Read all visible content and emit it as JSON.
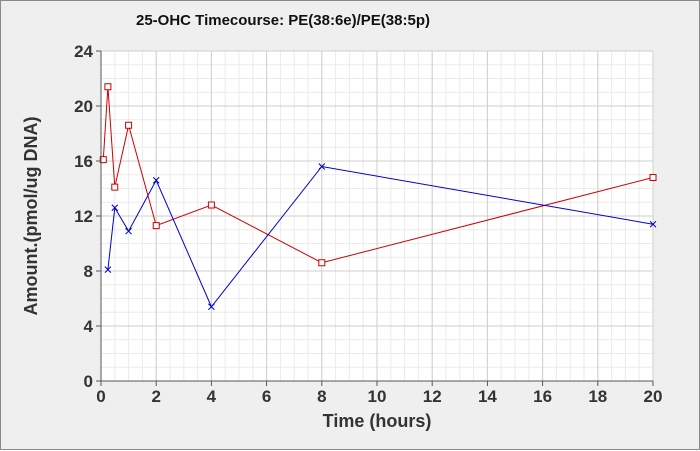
{
  "chart_data": {
    "type": "line",
    "title": "25-OHC Timecourse: PE(38:6e)/PE(38:5p)",
    "xlabel": "Time (hours)",
    "ylabel": "Amount.(pmol/ug DNA)",
    "xlim": [
      0,
      20
    ],
    "ylim": [
      0,
      24
    ],
    "xticks": [
      0,
      2,
      4,
      6,
      8,
      10,
      12,
      14,
      16,
      18,
      20
    ],
    "yticks": [
      0,
      4,
      8,
      12,
      16,
      20,
      24
    ],
    "grid": true,
    "legend": "none",
    "series": [
      {
        "color": "#cc0000",
        "marker": "square",
        "x": [
          0.083,
          0.25,
          0.5,
          1,
          2,
          4,
          8,
          20
        ],
        "y": [
          16.1,
          21.4,
          14.1,
          18.6,
          11.3,
          12.8,
          8.6,
          14.8
        ]
      },
      {
        "color": "#0000cc",
        "marker": "x",
        "x": [
          0.25,
          0.5,
          1,
          2,
          4,
          8,
          20
        ],
        "y": [
          8.1,
          12.6,
          10.9,
          14.6,
          5.4,
          15.6,
          11.4
        ]
      }
    ]
  }
}
